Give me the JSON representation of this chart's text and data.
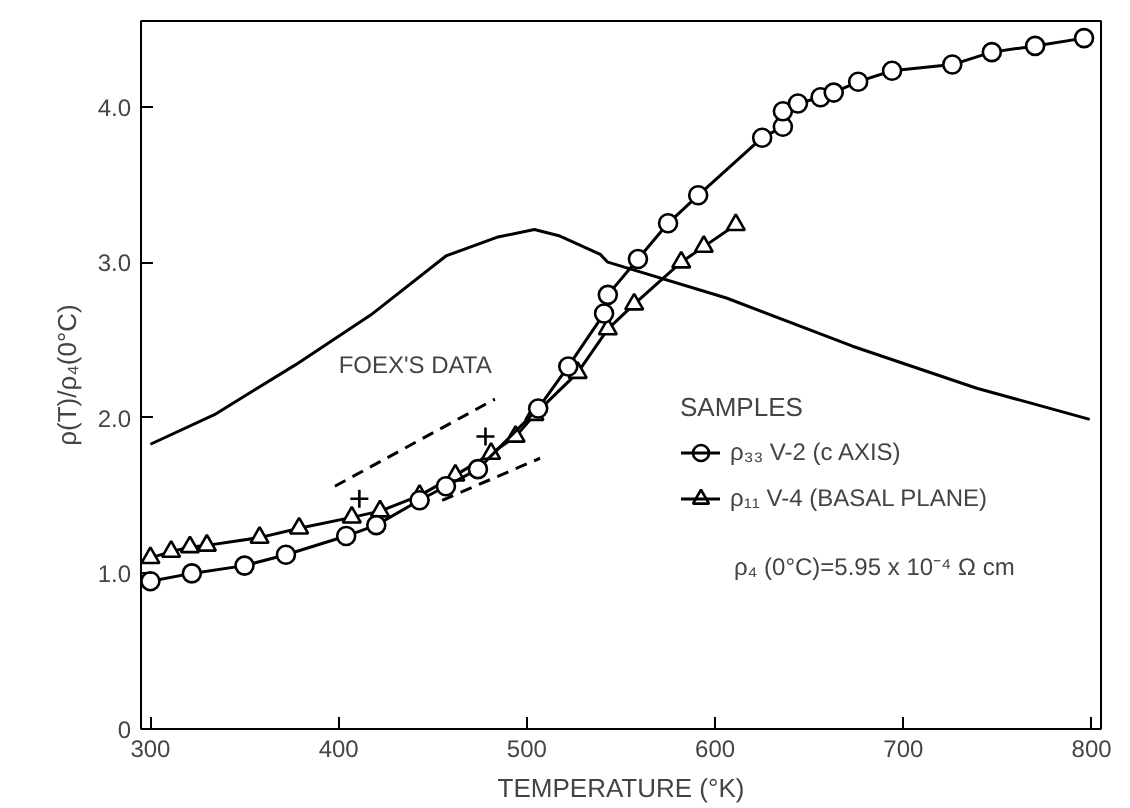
{
  "chart_data": {
    "type": "line",
    "xlabel": "TEMPERATURE (°K)",
    "ylabel": "ρ(T)/ρ₄(0°C)",
    "legend_title": "SAMPLES",
    "legend": "right",
    "grid": false,
    "xlim": [
      295,
      805
    ],
    "ylim": [
      0,
      4.55
    ],
    "xticks": [
      300,
      400,
      500,
      600,
      700,
      800
    ],
    "yticks": [
      0,
      {
        "value": 1,
        "label": "1.0"
      },
      {
        "value": 2,
        "label": "2.0"
      },
      {
        "value": 3,
        "label": "3.0"
      },
      {
        "value": 4,
        "label": "4.0"
      }
    ],
    "annotations": [
      "FOEX'S DATA",
      "ρ₄ (0°C)=5.95 x 10⁻⁴ Ω cm"
    ],
    "series": [
      {
        "name": "ρ₃₃ V-2 (c AXIS)",
        "color": "#000000",
        "marker": "circle",
        "line_style": "solid",
        "x": [
          300,
          322,
          350,
          372,
          404,
          420,
          443,
          457,
          474,
          506,
          522,
          541,
          543,
          559,
          575,
          591,
          625,
          636,
          636,
          644,
          656,
          663,
          676,
          694,
          726,
          747,
          770,
          796
        ],
        "values": [
          0.95,
          1.0,
          1.05,
          1.12,
          1.24,
          1.31,
          1.47,
          1.56,
          1.67,
          2.06,
          2.33,
          2.67,
          2.79,
          3.02,
          3.25,
          3.43,
          3.8,
          3.87,
          3.97,
          4.02,
          4.06,
          4.09,
          4.16,
          4.23,
          4.27,
          4.35,
          4.39,
          4.44
        ]
      },
      {
        "name": "ρ₁₁ V-4 (BASAL PLANE)",
        "color": "#000000",
        "marker": "triangle",
        "line_style": "solid",
        "x": [
          300,
          311,
          321,
          330,
          358,
          379,
          407,
          422,
          443,
          462,
          481,
          494,
          504,
          527,
          543,
          557,
          582,
          594,
          611
        ],
        "values": [
          1.1,
          1.14,
          1.17,
          1.18,
          1.23,
          1.29,
          1.36,
          1.4,
          1.5,
          1.63,
          1.77,
          1.88,
          2.02,
          2.29,
          2.57,
          2.73,
          3.0,
          3.1,
          3.24
        ]
      },
      {
        "color": "#000000",
        "marker": "none",
        "line_style": "solid",
        "x": [
          300,
          334,
          377,
          417,
          457,
          484,
          504,
          517,
          539,
          543,
          606,
          673,
          739,
          799
        ],
        "values": [
          1.83,
          2.02,
          2.34,
          2.66,
          3.04,
          3.16,
          3.21,
          3.17,
          3.05,
          3.0,
          2.77,
          2.46,
          2.19,
          1.99
        ]
      },
      {
        "color": "#000000",
        "marker": "none",
        "line_style": "dashed",
        "x": [
          398,
          483
        ],
        "values": [
          1.56,
          2.12
        ]
      },
      {
        "color": "#000000",
        "marker": "none",
        "line_style": "dashed",
        "x": [
          455,
          507
        ],
        "values": [
          1.47,
          1.74
        ]
      },
      {
        "type": "scatter",
        "color": "#000000",
        "marker": "cross",
        "x": [
          411,
          478
        ],
        "values": [
          1.48,
          1.88
        ]
      }
    ]
  }
}
